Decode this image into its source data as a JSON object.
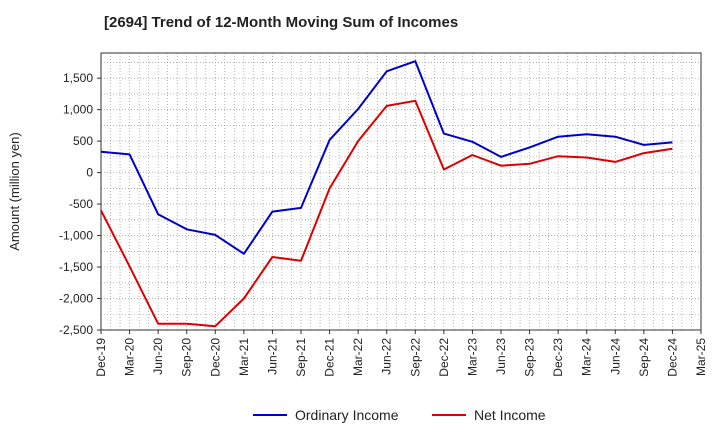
{
  "chart_data": {
    "type": "line",
    "title": "[2694]  Trend of 12-Month Moving Sum of Incomes",
    "xlabel": "",
    "ylabel": "Amount (million yen)",
    "ylim": [
      -2500,
      1900
    ],
    "yticks": [
      1500,
      1000,
      500,
      0,
      -500,
      -1000,
      -1500,
      -2000,
      -2500
    ],
    "ytick_labels": [
      "1,500",
      "1,000",
      "500",
      "0",
      "-500",
      "-1,000",
      "-1,500",
      "-2,000",
      "-2,500"
    ],
    "categories": [
      "Dec-19",
      "Mar-20",
      "Jun-20",
      "Sep-20",
      "Dec-20",
      "Mar-21",
      "Jun-21",
      "Sep-21",
      "Dec-21",
      "Mar-22",
      "Jun-22",
      "Sep-22",
      "Dec-22",
      "Mar-23",
      "Jun-23",
      "Sep-23",
      "Dec-23",
      "Mar-24",
      "Jun-24",
      "Sep-24",
      "Dec-24",
      "Mar-25"
    ],
    "grid": true,
    "legend_position": "bottom",
    "series": [
      {
        "name": "Ordinary Income",
        "color": "#0000cc",
        "values": [
          330,
          290,
          -660,
          -900,
          -990,
          -1290,
          -620,
          -560,
          520,
          1010,
          1610,
          1770,
          620,
          490,
          250,
          400,
          570,
          610,
          570,
          440,
          480,
          null
        ]
      },
      {
        "name": "Net Income",
        "color": "#dd0000",
        "values": [
          -600,
          -1490,
          -2400,
          -2400,
          -2440,
          -2000,
          -1340,
          -1400,
          -250,
          500,
          1060,
          1140,
          50,
          280,
          110,
          140,
          260,
          240,
          170,
          310,
          380,
          null
        ]
      }
    ]
  }
}
